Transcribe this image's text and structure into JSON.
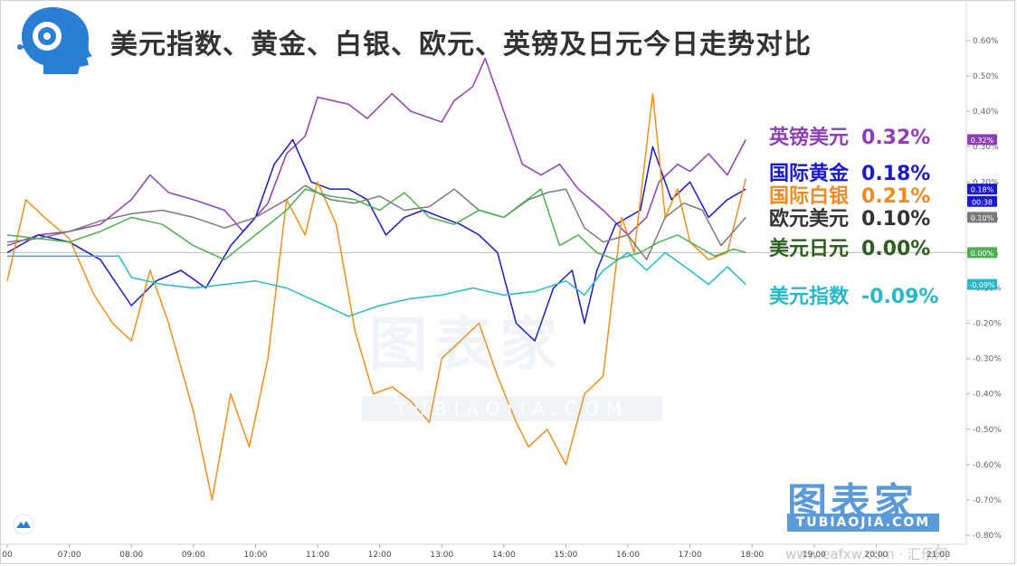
{
  "title": "美元指数、黄金、白银、欧元、英镑及日元今日走势对比",
  "watermark": {
    "main": "图表家",
    "sub": "TUBIAOJIA.COM",
    "site": "www.eafxw.com · 汇乐网"
  },
  "brand": {
    "main": "图表家",
    "sub": "TUBIAOJIA.COM"
  },
  "colors": {
    "gbp": "#8e3fb3",
    "gold": "#1a1acc",
    "silver": "#f0901e",
    "eur": "#7a7a7a",
    "jpy": "#4caf50",
    "dxy": "#26b9c9",
    "brand": "#5a9ad8"
  },
  "icons": [
    "robot-head-logo-icon",
    "tradingview-logo-icon"
  ],
  "legend": [
    {
      "key": "gbp",
      "name": "英镑美元",
      "value": "0.32%",
      "color": "#8e3fb3"
    },
    {
      "key": "gold",
      "name": "国际黄金",
      "value": "0.18%",
      "color": "#1a1acc"
    },
    {
      "key": "silver",
      "name": "国际白银",
      "value": "0.21%",
      "color": "#f08a24"
    },
    {
      "key": "eur",
      "name": "欧元美元",
      "value": "0.10%",
      "color": "#333333"
    },
    {
      "key": "jpy",
      "name": "美元日元",
      "value": "0.00%",
      "color": "#2e5e1e"
    },
    {
      "key": "dxy",
      "name": "美元指数",
      "value": "-0.09%",
      "color": "#26b9c9"
    }
  ],
  "chart_data": {
    "type": "line",
    "title": "美元指数、黄金、白银、欧元、英镑及日元今日走势对比",
    "xlabel": "",
    "ylabel": "",
    "x_ticks": [
      "00",
      "07:00",
      "08:00",
      "09:00",
      "10:00",
      "11:00",
      "12:00",
      "13:00",
      "14:00",
      "15:00",
      "16:00",
      "17:00",
      "18:00",
      "19:00",
      "20:00",
      "21:00"
    ],
    "y_ticks": [
      "0.60%",
      "0.50%",
      "0.40%",
      "0.30%",
      "0.20%",
      "0.10%",
      "0.00%",
      "-0.10%",
      "-0.20%",
      "-0.30%",
      "-0.40%",
      "-0.50%",
      "-0.60%",
      "-0.70%",
      "-0.80%"
    ],
    "ylim": [
      -0.8,
      0.6
    ],
    "y_unit": "%",
    "grid": false,
    "legend_position": "right",
    "price_tags": [
      {
        "series": "英镑美元",
        "label": "0.32%",
        "value": 0.32,
        "color": "#8e3fb3"
      },
      {
        "series": "国际黄金",
        "label": "0.18%",
        "value": 0.18,
        "color": "#1a1acc"
      },
      {
        "series": "国际白银",
        "label": "00:38",
        "value": 0.145,
        "color": "#1a1acc"
      },
      {
        "series": "欧元美元",
        "label": "0.10%",
        "value": 0.1,
        "color": "#7a7a7a"
      },
      {
        "series": "美元日元",
        "label": "0.00%",
        "value": 0.0,
        "color": "#4caf50"
      },
      {
        "series": "美元指数",
        "label": "-0.09%",
        "value": -0.09,
        "color": "#26b9c9"
      }
    ],
    "series": [
      {
        "name": "英镑美元",
        "color": "#8e3fb3",
        "x": [
          6.0,
          6.5,
          7.0,
          7.5,
          8.0,
          8.3,
          8.6,
          9.0,
          9.5,
          9.8,
          10.2,
          10.5,
          10.8,
          11.0,
          11.5,
          11.8,
          12.2,
          12.5,
          13.0,
          13.2,
          13.5,
          13.7,
          14.0,
          14.3,
          14.6,
          14.9,
          15.2,
          15.6,
          16.0,
          16.3,
          16.5,
          16.8,
          17.0,
          17.3,
          17.6,
          17.9
        ],
        "y": [
          0.02,
          0.05,
          0.06,
          0.08,
          0.15,
          0.22,
          0.17,
          0.15,
          0.12,
          0.06,
          0.14,
          0.28,
          0.33,
          0.44,
          0.42,
          0.38,
          0.45,
          0.4,
          0.37,
          0.43,
          0.47,
          0.55,
          0.4,
          0.25,
          0.22,
          0.25,
          0.18,
          0.12,
          0.05,
          0.1,
          0.2,
          0.25,
          0.23,
          0.28,
          0.22,
          0.32
        ]
      },
      {
        "name": "国际黄金",
        "color": "#1a1acc",
        "x": [
          6.0,
          6.5,
          7.0,
          7.5,
          8.0,
          8.4,
          8.8,
          9.2,
          9.6,
          10.0,
          10.3,
          10.6,
          10.9,
          11.2,
          11.5,
          11.8,
          12.1,
          12.4,
          12.7,
          13.0,
          13.3,
          13.6,
          13.9,
          14.2,
          14.5,
          14.8,
          15.1,
          15.3,
          15.5,
          15.8,
          16.2,
          16.4,
          16.7,
          17.0,
          17.3,
          17.6,
          17.9
        ],
        "y": [
          0.0,
          0.05,
          0.03,
          -0.02,
          -0.15,
          -0.08,
          -0.05,
          -0.1,
          0.02,
          0.1,
          0.25,
          0.32,
          0.2,
          0.18,
          0.18,
          0.15,
          0.05,
          0.1,
          0.12,
          0.1,
          0.08,
          0.05,
          0.0,
          -0.2,
          -0.25,
          -0.1,
          -0.05,
          -0.2,
          -0.05,
          0.08,
          0.12,
          0.3,
          0.15,
          0.2,
          0.1,
          0.15,
          0.18
        ]
      },
      {
        "name": "国际白银",
        "color": "#f0901e",
        "x": [
          6.0,
          6.3,
          6.6,
          7.0,
          7.4,
          7.7,
          8.0,
          8.3,
          8.6,
          9.0,
          9.3,
          9.6,
          9.9,
          10.2,
          10.5,
          10.8,
          11.0,
          11.3,
          11.6,
          11.9,
          12.2,
          12.5,
          12.8,
          13.0,
          13.3,
          13.6,
          13.9,
          14.2,
          14.4,
          14.7,
          15.0,
          15.3,
          15.6,
          15.9,
          16.1,
          16.4,
          16.6,
          16.8,
          17.0,
          17.3,
          17.6,
          17.9
        ],
        "y": [
          -0.08,
          0.15,
          0.1,
          0.04,
          -0.12,
          -0.2,
          -0.25,
          -0.05,
          -0.2,
          -0.45,
          -0.7,
          -0.4,
          -0.55,
          -0.3,
          0.15,
          0.05,
          0.2,
          0.08,
          -0.22,
          -0.4,
          -0.38,
          -0.42,
          -0.48,
          -0.3,
          -0.25,
          -0.2,
          -0.35,
          -0.48,
          -0.55,
          -0.5,
          -0.6,
          -0.4,
          -0.35,
          0.1,
          0.0,
          0.45,
          0.1,
          0.18,
          0.03,
          -0.02,
          0.0,
          0.21
        ]
      },
      {
        "name": "欧元美元",
        "color": "#7a7a7a",
        "x": [
          6.0,
          6.5,
          7.0,
          7.5,
          8.0,
          8.5,
          9.0,
          9.5,
          10.0,
          10.5,
          10.8,
          11.2,
          11.6,
          12.0,
          12.4,
          12.8,
          13.2,
          13.6,
          14.0,
          14.4,
          14.7,
          15.0,
          15.3,
          15.6,
          16.0,
          16.3,
          16.6,
          16.9,
          17.2,
          17.5,
          17.9
        ],
        "y": [
          0.03,
          0.04,
          0.06,
          0.09,
          0.11,
          0.12,
          0.1,
          0.07,
          0.1,
          0.15,
          0.19,
          0.15,
          0.14,
          0.16,
          0.12,
          0.13,
          0.18,
          0.12,
          0.1,
          0.15,
          0.17,
          0.18,
          0.07,
          0.03,
          0.05,
          -0.02,
          0.1,
          0.14,
          0.12,
          0.02,
          0.1
        ]
      },
      {
        "name": "美元日元",
        "color": "#4caf50",
        "x": [
          6.0,
          6.5,
          7.0,
          7.5,
          8.0,
          8.5,
          9.0,
          9.5,
          10.0,
          10.5,
          10.8,
          11.2,
          11.6,
          12.0,
          12.4,
          12.8,
          13.2,
          13.6,
          14.0,
          14.3,
          14.6,
          14.9,
          15.2,
          15.5,
          15.8,
          16.2,
          16.5,
          16.8,
          17.1,
          17.4,
          17.7,
          17.9
        ],
        "y": [
          0.05,
          0.04,
          0.03,
          0.06,
          0.1,
          0.08,
          0.02,
          -0.02,
          0.05,
          0.12,
          0.18,
          0.16,
          0.15,
          0.12,
          0.17,
          0.1,
          0.08,
          0.12,
          0.1,
          0.14,
          0.18,
          0.02,
          0.05,
          0.0,
          -0.02,
          0.0,
          0.03,
          0.05,
          0.02,
          -0.01,
          0.01,
          0.0
        ]
      },
      {
        "name": "美元指数",
        "color": "#26b9c9",
        "x": [
          6.0,
          6.5,
          7.0,
          7.5,
          7.8,
          8.0,
          8.5,
          9.0,
          9.5,
          10.0,
          10.5,
          11.0,
          11.5,
          12.0,
          12.5,
          13.0,
          13.5,
          14.0,
          14.5,
          15.0,
          15.3,
          15.6,
          16.0,
          16.3,
          16.6,
          17.0,
          17.3,
          17.6,
          17.9
        ],
        "y": [
          -0.01,
          -0.01,
          -0.01,
          -0.01,
          -0.01,
          -0.07,
          -0.09,
          -0.1,
          -0.09,
          -0.08,
          -0.1,
          -0.14,
          -0.18,
          -0.15,
          -0.13,
          -0.12,
          -0.1,
          -0.12,
          -0.11,
          -0.08,
          -0.12,
          -0.05,
          0.0,
          -0.05,
          0.0,
          -0.05,
          -0.09,
          -0.04,
          -0.09
        ]
      }
    ]
  }
}
